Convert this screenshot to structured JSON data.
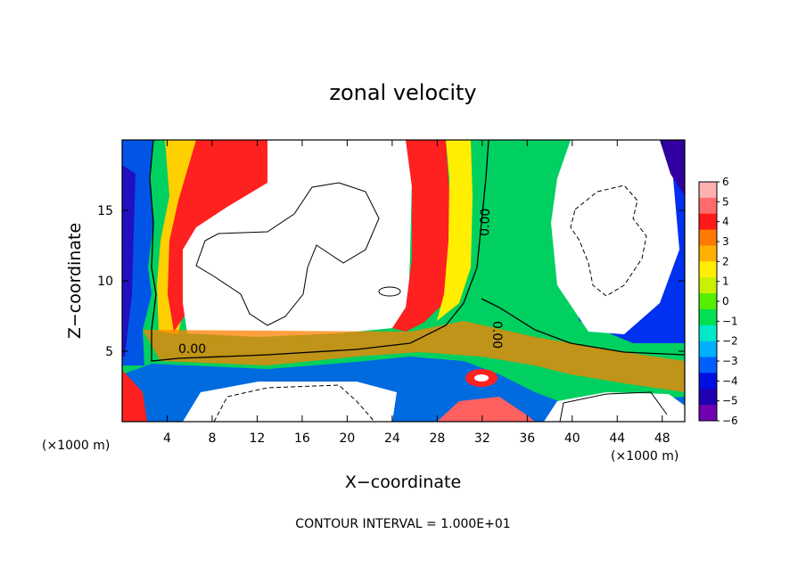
{
  "chart_data": {
    "type": "heatmap",
    "title": "zonal velocity",
    "xlabel": "X−coordinate",
    "ylabel": "Z−coordinate",
    "x_unit": "(×1000 m)",
    "y_unit": "(×1000 m)",
    "xlim": [
      0,
      50
    ],
    "ylim": [
      0,
      20
    ],
    "x_ticks": [
      4,
      8,
      12,
      16,
      20,
      24,
      28,
      32,
      36,
      40,
      44,
      48
    ],
    "y_ticks": [
      5,
      10,
      15
    ],
    "colorbar": {
      "min": -6,
      "max": 6,
      "labels": [
        "6",
        "5",
        "4",
        "3",
        "2",
        "1",
        "0",
        "−1",
        "−2",
        "−3",
        "−4",
        "−5",
        "−6"
      ],
      "colors": [
        "#ffb0b0",
        "#ff6b6b",
        "#ff1a1a",
        "#ff7a00",
        "#ffb000",
        "#ffee00",
        "#c8f000",
        "#55ee00",
        "#00e050",
        "#00e8c8",
        "#00b0ff",
        "#0060ff",
        "#0010e0",
        "#2000b0",
        "#7000b0"
      ]
    },
    "contour_labels": [
      "0.00",
      "0.00",
      "0.00"
    ],
    "footer": "CONTOUR INTERVAL = 1.000E+01"
  }
}
